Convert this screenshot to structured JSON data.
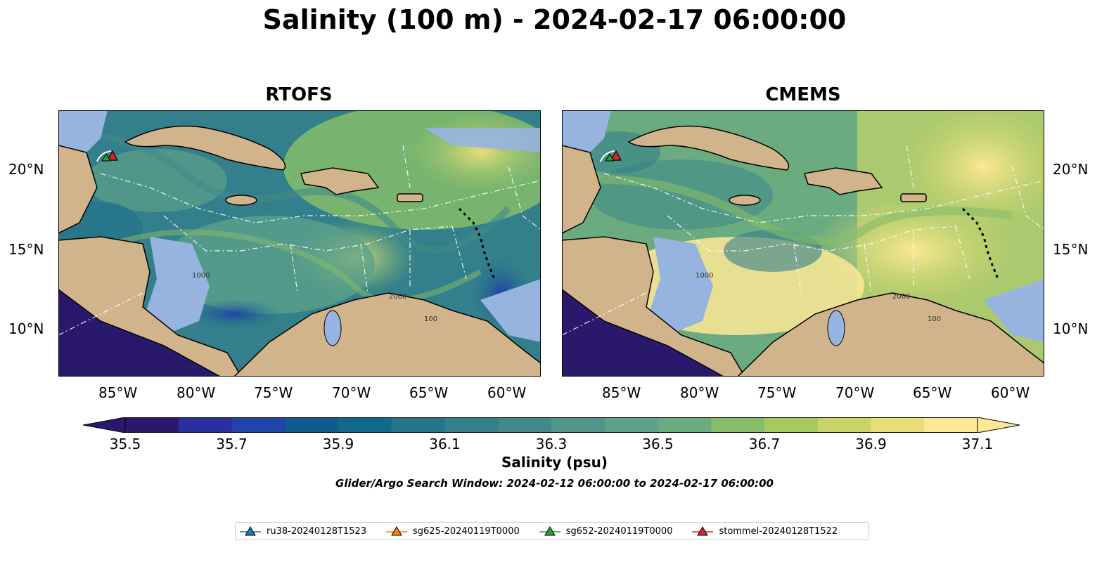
{
  "figure": {
    "title": "Salinity (100 m) - 2024-02-17 06:00:00"
  },
  "panels": [
    {
      "title": "RTOFS"
    },
    {
      "title": "CMEMS"
    }
  ],
  "axes": {
    "lon_labels": [
      "85°W",
      "80°W",
      "75°W",
      "70°W",
      "65°W",
      "60°W"
    ],
    "lat_labels": [
      "20°N",
      "15°N",
      "10°N"
    ]
  },
  "colorbar": {
    "label": "Salinity (psu)",
    "ticks": [
      "35.5",
      "35.7",
      "35.9",
      "36.1",
      "36.3",
      "36.5",
      "36.7",
      "36.9",
      "37.1"
    ],
    "range": [
      35.5,
      37.1
    ],
    "extend": "both",
    "colormap": "haline",
    "colors": [
      "#2a186c",
      "#2a2ea1",
      "#1f43a6",
      "#0e5b8f",
      "#10688b",
      "#24748a",
      "#337f8b",
      "#418a89",
      "#4f958a",
      "#5ca18a",
      "#6aab7f",
      "#85bd6a",
      "#a6ca5f",
      "#c8d566",
      "#e8df77",
      "#fde995"
    ]
  },
  "search_window": "Glider/Argo Search Window: 2024-02-12 06:00:00 to 2024-02-17 06:00:00",
  "contour_labels": [
    "1000",
    "2000",
    "100"
  ],
  "legend": {
    "items": [
      {
        "label": "ru38-20240128T1523",
        "color": "#1f77b4"
      },
      {
        "label": "sg625-20240119T0000",
        "color": "#ff7f0e"
      },
      {
        "label": "sg652-20240119T0000",
        "color": "#2ca02c"
      },
      {
        "label": "stommel-20240128T1522",
        "color": "#d62728"
      }
    ]
  },
  "map_colors": {
    "land": "#d2b48c",
    "shelf": "#97b4e0",
    "deep_pacific": "#2a186c"
  }
}
